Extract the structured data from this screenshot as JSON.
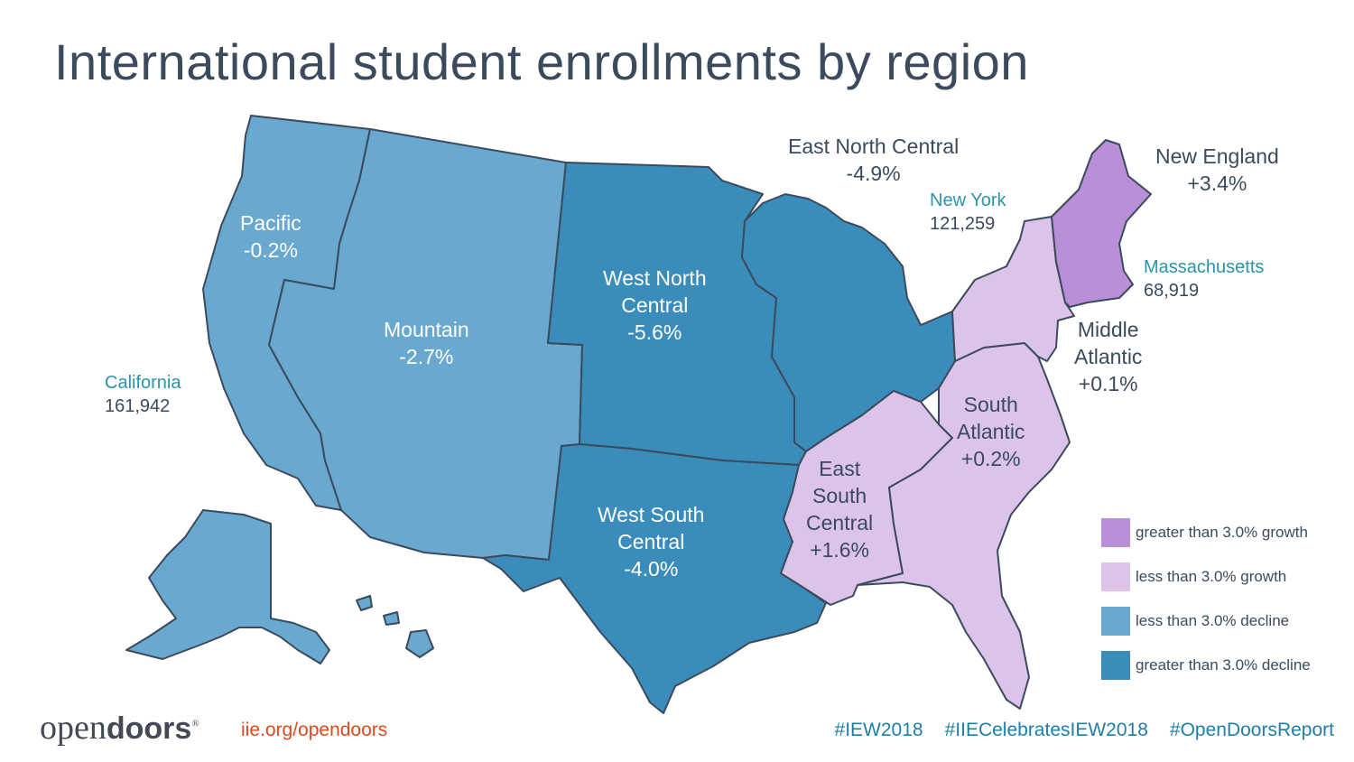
{
  "title": "International student enrollments by region",
  "colors": {
    "strong_growth": "#b98fd8",
    "growth": "#dcc3ea",
    "decline": "#69a8cf",
    "strong_decline": "#3a8dba",
    "text_dark": "#3b4a5c",
    "state_name": "#2b94a8",
    "url": "#e0481d",
    "hashtag": "#1d7fa8"
  },
  "regions": [
    {
      "name": "Pacific",
      "change": "-0.2%",
      "category": "decline"
    },
    {
      "name": "Mountain",
      "change": "-2.7%",
      "category": "decline"
    },
    {
      "name": "West North Central",
      "name_line1": "West North",
      "name_line2": "Central",
      "change": "-5.6%",
      "category": "strong_decline"
    },
    {
      "name": "West South Central",
      "name_line1": "West South",
      "name_line2": "Central",
      "change": "-4.0%",
      "category": "strong_decline"
    },
    {
      "name": "East North Central",
      "change": "-4.9%",
      "category": "strong_decline"
    },
    {
      "name": "East South Central",
      "name_line1": "East",
      "name_line2": "South",
      "name_line3": "Central",
      "change": "+1.6%",
      "category": "growth"
    },
    {
      "name": "South Atlantic",
      "name_line1": "South",
      "name_line2": "Atlantic",
      "change": "+0.2%",
      "category": "growth"
    },
    {
      "name": "Middle Atlantic",
      "name_line1": "Middle",
      "name_line2": "Atlantic",
      "change": "+0.1%",
      "category": "growth"
    },
    {
      "name": "New England",
      "change": "+3.4%",
      "category": "strong_growth"
    }
  ],
  "states": [
    {
      "name": "California",
      "value": "161,942"
    },
    {
      "name": "New York",
      "value": "121,259"
    },
    {
      "name": "Massachusetts",
      "value": "68,919"
    }
  ],
  "legend": [
    {
      "label": "greater than 3.0% growth",
      "category": "strong_growth"
    },
    {
      "label": "less than 3.0% growth",
      "category": "growth"
    },
    {
      "label": "less than 3.0% decline",
      "category": "decline"
    },
    {
      "label": "greater than 3.0% decline",
      "category": "strong_decline"
    }
  ],
  "footer": {
    "logo_light": "open",
    "logo_bold": "doors",
    "logo_mark": "®",
    "url": "iie.org/opendoors",
    "hashtags": [
      "#IEW2018",
      "#IIECelebratesIEW2018",
      "#OpenDoorsReport"
    ]
  }
}
